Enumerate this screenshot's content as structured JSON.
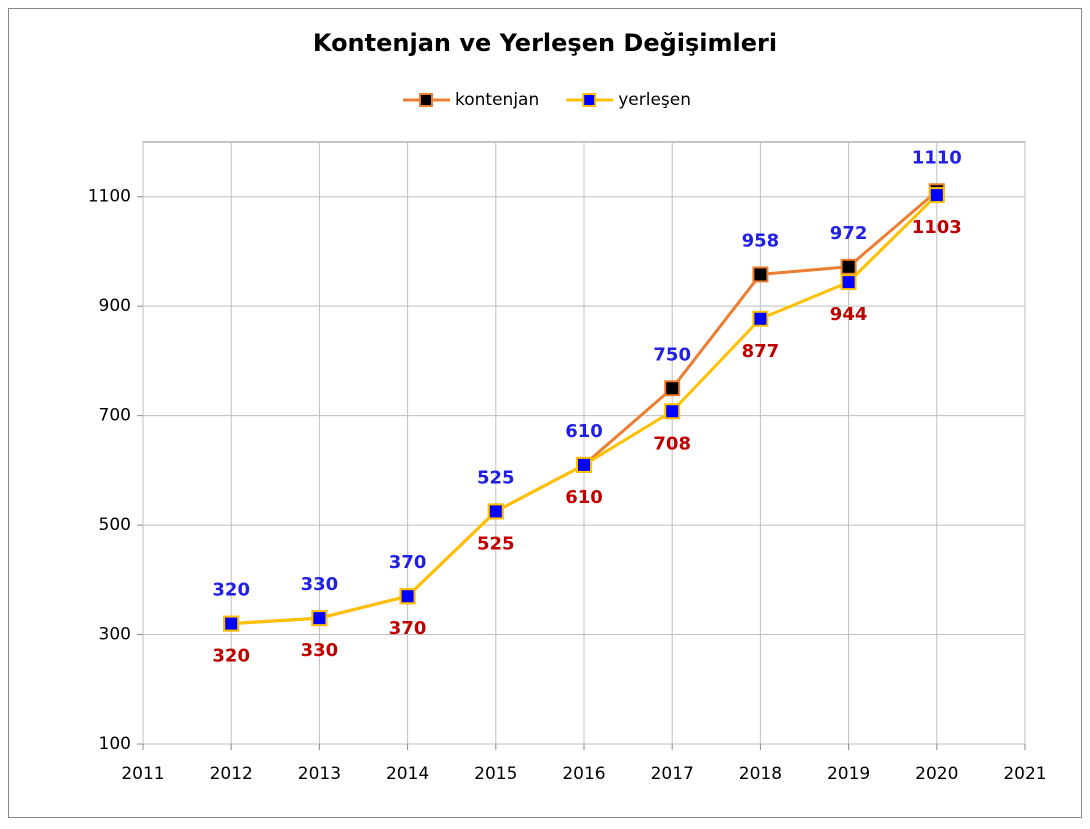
{
  "chart_data": {
    "type": "line",
    "title": "Kontenjan ve Yerleşen Değişimleri",
    "x": [
      2012,
      2013,
      2014,
      2015,
      2016,
      2017,
      2018,
      2019,
      2020
    ],
    "series": [
      {
        "name": "kontenjan",
        "color": "#ed7d31",
        "marker_color": "#000000",
        "label_color": "#1f1fe6",
        "label_position": "above",
        "values": [
          320,
          330,
          370,
          525,
          610,
          750,
          958,
          972,
          1110
        ]
      },
      {
        "name": "yerleşen",
        "color": "#ffc000",
        "marker_color": "#0000ff",
        "label_color": "#c00000",
        "label_position": "below",
        "values": [
          320,
          330,
          370,
          525,
          610,
          708,
          877,
          944,
          1103
        ]
      }
    ],
    "xlim": [
      2011,
      2021
    ],
    "xticks": [
      2011,
      2012,
      2013,
      2014,
      2015,
      2016,
      2017,
      2018,
      2019,
      2020,
      2021
    ],
    "ylim": [
      100,
      1200
    ],
    "yticks": [
      100,
      300,
      500,
      700,
      900,
      1100
    ],
    "grid": true,
    "legend": "top"
  }
}
